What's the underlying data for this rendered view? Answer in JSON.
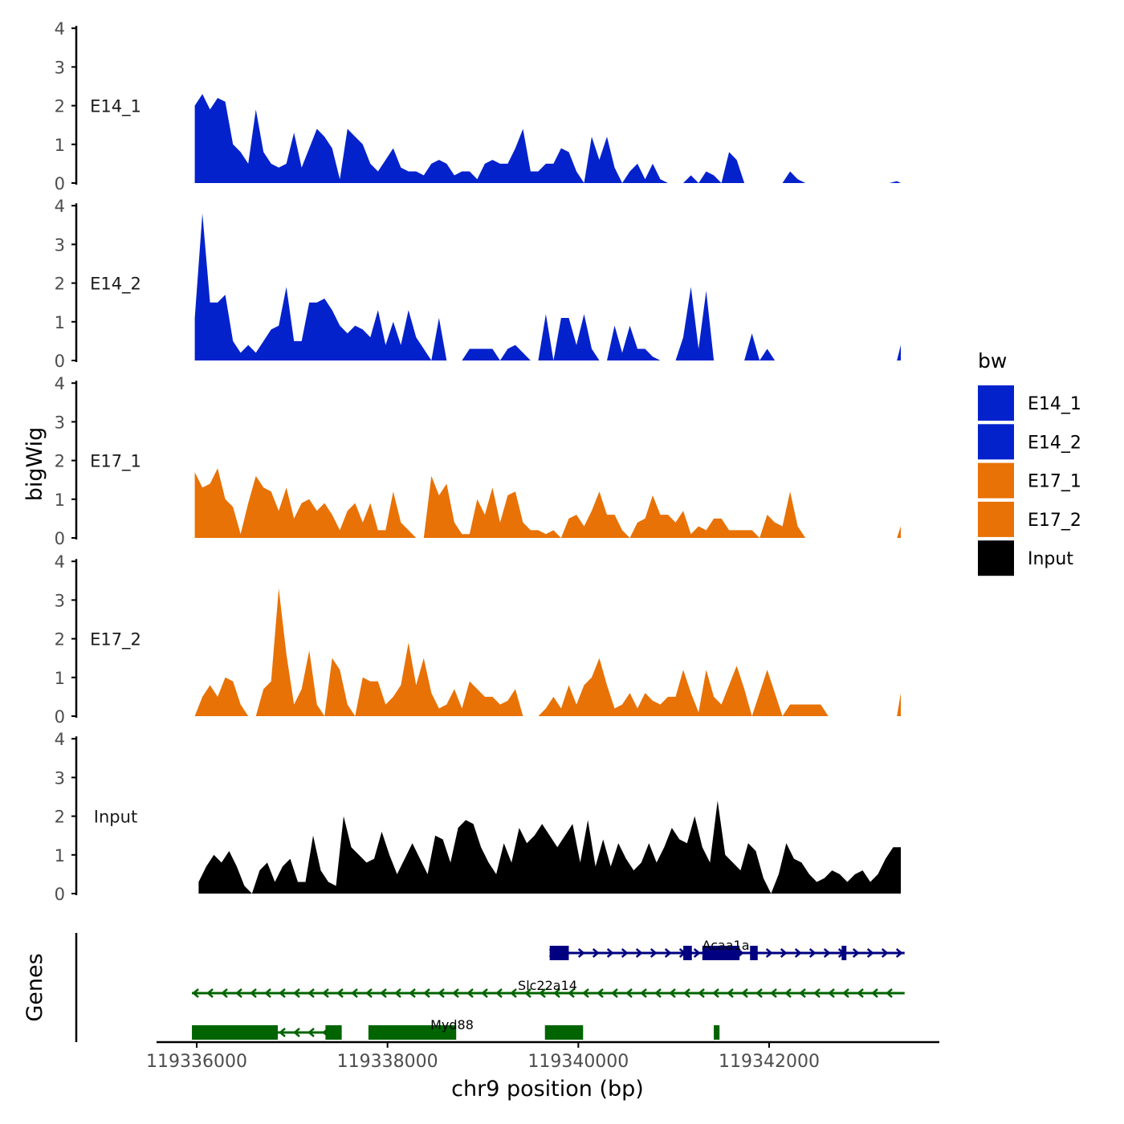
{
  "chart_data": {
    "type": "area",
    "title": "",
    "xlabel": "chr9 position (bp)",
    "ylabel": "bigWig",
    "genes_label": "Genes",
    "xlim": [
      119335700,
      119344050
    ],
    "x_ticks": [
      119336000,
      119338000,
      119340000,
      119342000
    ],
    "x_tick_labels": [
      "119336000",
      "119338000",
      "119340000",
      "119342000"
    ],
    "y_ticks": [
      0,
      1,
      2,
      3,
      4
    ],
    "ylim": [
      0,
      4
    ],
    "legend": {
      "title": "bw",
      "position": "right",
      "items": [
        {
          "label": "E14_1",
          "color": "#0422cc"
        },
        {
          "label": "E14_2",
          "color": "#0422cc"
        },
        {
          "label": "E17_1",
          "color": "#e87206"
        },
        {
          "label": "E17_2",
          "color": "#e87206"
        },
        {
          "label": "Input",
          "color": "#000000"
        }
      ]
    },
    "tracks": [
      {
        "name": "E14_1",
        "color": "#0422cc",
        "x": [
          119335980,
          119336060,
          119336140,
          119336220,
          119336300,
          119336380,
          119336460,
          119336540,
          119336620,
          119336700,
          119336780,
          119336860,
          119336940,
          119337020,
          119337100,
          119337180,
          119337260,
          119337340,
          119337420,
          119337500,
          119337580,
          119337660,
          119337740,
          119337820,
          119337900,
          119337980,
          119338060,
          119338140,
          119338220,
          119338300,
          119338380,
          119338460,
          119338540,
          119338620,
          119338700,
          119338780,
          119338860,
          119338940,
          119339020,
          119339100,
          119339180,
          119339260,
          119339340,
          119339420,
          119339500,
          119339580,
          119339660,
          119339740,
          119339820,
          119339900,
          119339980,
          119340060,
          119340140,
          119340220,
          119340300,
          119340380,
          119340460,
          119340540,
          119340620,
          119340700,
          119340780,
          119340860,
          119340940,
          119341020,
          119341100,
          119341180,
          119341260,
          119341340,
          119341420,
          119341500,
          119341580,
          119341660,
          119341740,
          119341820,
          119341900,
          119341980,
          119342060,
          119342140,
          119342220,
          119342300,
          119342380,
          119342460,
          119342540,
          119342620,
          119342700,
          119342780,
          119342860,
          119342940,
          119343020,
          119343100,
          119343180,
          119343260,
          119343340,
          119343380
        ],
        "y": [
          2.0,
          2.3,
          1.9,
          2.2,
          2.1,
          1.0,
          0.8,
          0.5,
          1.9,
          0.8,
          0.5,
          0.4,
          0.5,
          1.3,
          0.4,
          0.9,
          1.4,
          1.2,
          0.9,
          0.1,
          1.4,
          1.2,
          1.0,
          0.5,
          0.3,
          0.6,
          0.9,
          0.4,
          0.3,
          0.3,
          0.2,
          0.5,
          0.6,
          0.5,
          0.2,
          0.3,
          0.3,
          0.1,
          0.5,
          0.6,
          0.5,
          0.5,
          0.9,
          1.4,
          0.3,
          0.3,
          0.5,
          0.5,
          0.9,
          0.8,
          0.3,
          0.0,
          1.2,
          0.6,
          1.2,
          0.4,
          0.0,
          0.3,
          0.5,
          0.1,
          0.5,
          0.1,
          0.0,
          0.0,
          0.0,
          0.2,
          0.0,
          0.3,
          0.2,
          0.0,
          0.8,
          0.6,
          0.0,
          0.0,
          0.0,
          0.0,
          0.0,
          0.0,
          0.3,
          0.1,
          0.0,
          0.0,
          0.0,
          0.0,
          0.0,
          0.0,
          0.0,
          0.0,
          0.0,
          0.0,
          0.0,
          0.0,
          0.05,
          0.0
        ]
      },
      {
        "name": "E14_2",
        "color": "#0422cc",
        "x": [
          119335980,
          119336060,
          119336140,
          119336220,
          119336300,
          119336380,
          119336460,
          119336540,
          119336620,
          119336700,
          119336780,
          119336860,
          119336940,
          119337020,
          119337100,
          119337180,
          119337260,
          119337340,
          119337420,
          119337500,
          119337580,
          119337660,
          119337740,
          119337820,
          119337900,
          119337980,
          119338060,
          119338140,
          119338220,
          119338300,
          119338380,
          119338460,
          119338540,
          119338620,
          119338700,
          119338780,
          119338860,
          119338940,
          119339020,
          119339100,
          119339180,
          119339260,
          119339340,
          119339420,
          119339500,
          119339580,
          119339660,
          119339740,
          119339820,
          119339900,
          119339980,
          119340060,
          119340140,
          119340220,
          119340300,
          119340380,
          119340460,
          119340540,
          119340620,
          119340700,
          119340780,
          119340860,
          119340940,
          119341020,
          119341100,
          119341180,
          119341260,
          119341340,
          119341420,
          119341500,
          119341580,
          119341660,
          119341740,
          119341820,
          119341900,
          119341980,
          119342060,
          119342140,
          119342220,
          119342300,
          119342380,
          119342460,
          119342540,
          119342620,
          119342700,
          119342780,
          119342860,
          119342940,
          119343020,
          119343100,
          119343180,
          119343260,
          119343340,
          119343380
        ],
        "y": [
          1.1,
          3.8,
          1.5,
          1.5,
          1.7,
          0.5,
          0.2,
          0.4,
          0.2,
          0.5,
          0.8,
          0.9,
          1.9,
          0.5,
          0.5,
          1.5,
          1.5,
          1.6,
          1.3,
          0.9,
          0.7,
          0.9,
          0.8,
          0.6,
          1.3,
          0.4,
          1.0,
          0.4,
          1.3,
          0.6,
          0.3,
          0.0,
          1.1,
          0.0,
          0.0,
          0.0,
          0.3,
          0.3,
          0.3,
          0.3,
          0.0,
          0.3,
          0.4,
          0.2,
          0.0,
          0.0,
          1.2,
          0.0,
          1.1,
          1.1,
          0.4,
          1.2,
          0.3,
          0.0,
          0.0,
          0.9,
          0.2,
          0.9,
          0.3,
          0.3,
          0.1,
          0.0,
          0.0,
          0.0,
          0.6,
          1.9,
          0.3,
          1.8,
          0.0,
          0.0,
          0.0,
          0.0,
          0.0,
          0.7,
          0.0,
          0.3,
          0.0,
          0.0,
          0.0,
          0.0,
          0.0,
          0.0,
          0.0,
          0.0,
          0.0,
          0.0,
          0.0,
          0.0,
          0.0,
          0.0,
          0.0,
          0.0,
          0.0,
          0.4
        ]
      },
      {
        "name": "E17_1",
        "color": "#e87206",
        "x": [
          119335980,
          119336060,
          119336140,
          119336220,
          119336300,
          119336380,
          119336460,
          119336540,
          119336620,
          119336700,
          119336780,
          119336860,
          119336940,
          119337020,
          119337100,
          119337180,
          119337260,
          119337340,
          119337420,
          119337500,
          119337580,
          119337660,
          119337740,
          119337820,
          119337900,
          119337980,
          119338060,
          119338140,
          119338220,
          119338300,
          119338380,
          119338460,
          119338540,
          119338620,
          119338700,
          119338780,
          119338860,
          119338940,
          119339020,
          119339100,
          119339180,
          119339260,
          119339340,
          119339420,
          119339500,
          119339580,
          119339660,
          119339740,
          119339820,
          119339900,
          119339980,
          119340060,
          119340140,
          119340220,
          119340300,
          119340380,
          119340460,
          119340540,
          119340620,
          119340700,
          119340780,
          119340860,
          119340940,
          119341020,
          119341100,
          119341180,
          119341260,
          119341340,
          119341420,
          119341500,
          119341580,
          119341660,
          119341740,
          119341820,
          119341900,
          119341980,
          119342060,
          119342140,
          119342220,
          119342300,
          119342380,
          119342460,
          119342540,
          119342620,
          119342700,
          119342780,
          119342860,
          119342940,
          119343020,
          119343100,
          119343180,
          119343260,
          119343340,
          119343380
        ],
        "y": [
          1.7,
          1.3,
          1.4,
          1.8,
          1.0,
          0.8,
          0.1,
          0.9,
          1.6,
          1.3,
          1.2,
          0.7,
          1.3,
          0.5,
          0.9,
          1.0,
          0.7,
          0.9,
          0.6,
          0.2,
          0.7,
          0.9,
          0.4,
          0.9,
          0.2,
          0.2,
          1.2,
          0.4,
          0.2,
          0.0,
          0.0,
          1.6,
          1.1,
          1.4,
          0.4,
          0.1,
          0.1,
          1.0,
          0.6,
          1.3,
          0.4,
          1.1,
          1.2,
          0.4,
          0.2,
          0.2,
          0.1,
          0.2,
          0.0,
          0.5,
          0.6,
          0.3,
          0.7,
          1.2,
          0.6,
          0.6,
          0.2,
          0.0,
          0.4,
          0.5,
          1.1,
          0.6,
          0.6,
          0.4,
          0.7,
          0.1,
          0.3,
          0.2,
          0.5,
          0.5,
          0.2,
          0.2,
          0.2,
          0.2,
          0.0,
          0.6,
          0.4,
          0.3,
          1.2,
          0.3,
          0.0,
          0.0,
          0.0,
          0.0,
          0.0,
          0.0,
          0.0,
          0.0,
          0.0,
          0.0,
          0.0,
          0.0,
          0.0,
          0.3
        ]
      },
      {
        "name": "E17_2",
        "color": "#e87206",
        "x": [
          119335980,
          119336060,
          119336140,
          119336220,
          119336300,
          119336380,
          119336460,
          119336540,
          119336620,
          119336700,
          119336780,
          119336860,
          119336940,
          119337020,
          119337100,
          119337180,
          119337260,
          119337340,
          119337420,
          119337500,
          119337580,
          119337660,
          119337740,
          119337820,
          119337900,
          119337980,
          119338060,
          119338140,
          119338220,
          119338300,
          119338380,
          119338460,
          119338540,
          119338620,
          119338700,
          119338780,
          119338860,
          119338940,
          119339020,
          119339100,
          119339180,
          119339260,
          119339340,
          119339420,
          119339500,
          119339580,
          119339660,
          119339740,
          119339820,
          119339900,
          119339980,
          119340060,
          119340140,
          119340220,
          119340300,
          119340380,
          119340460,
          119340540,
          119340620,
          119340700,
          119340780,
          119340860,
          119340940,
          119341020,
          119341100,
          119341180,
          119341260,
          119341340,
          119341420,
          119341500,
          119341580,
          119341660,
          119341740,
          119341820,
          119341900,
          119341980,
          119342060,
          119342140,
          119342220,
          119342300,
          119342380,
          119342460,
          119342540,
          119342620,
          119342700,
          119342780,
          119342860,
          119342940,
          119343020,
          119343100,
          119343180,
          119343260,
          119343340,
          119343380
        ],
        "y": [
          0.0,
          0.5,
          0.8,
          0.5,
          1.0,
          0.9,
          0.3,
          0.0,
          0.0,
          0.7,
          0.9,
          3.3,
          1.6,
          0.3,
          0.7,
          1.7,
          0.3,
          0.0,
          1.5,
          1.2,
          0.3,
          0.0,
          1.0,
          0.9,
          0.9,
          0.3,
          0.5,
          0.8,
          1.9,
          0.8,
          1.5,
          0.6,
          0.2,
          0.3,
          0.7,
          0.2,
          0.9,
          0.7,
          0.5,
          0.5,
          0.3,
          0.4,
          0.7,
          0.0,
          0.0,
          0.0,
          0.2,
          0.5,
          0.2,
          0.8,
          0.3,
          0.8,
          1.0,
          1.5,
          0.8,
          0.2,
          0.3,
          0.6,
          0.2,
          0.6,
          0.4,
          0.3,
          0.5,
          0.5,
          1.2,
          0.6,
          0.1,
          1.2,
          0.5,
          0.3,
          0.8,
          1.3,
          0.7,
          0.0,
          0.6,
          1.2,
          0.6,
          0.0,
          0.3,
          0.3,
          0.3,
          0.3,
          0.3,
          0.0,
          0.0,
          0.0,
          0.0,
          0.0,
          0.0,
          0.0,
          0.0,
          0.0,
          0.0,
          0.6
        ]
      },
      {
        "name": "Input",
        "color": "#000000",
        "x": [
          119336020,
          119336100,
          119336180,
          119336260,
          119336340,
          119336420,
          119336500,
          119336580,
          119336660,
          119336740,
          119336820,
          119336900,
          119336980,
          119337060,
          119337140,
          119337220,
          119337300,
          119337380,
          119337460,
          119337540,
          119337620,
          119337700,
          119337780,
          119337860,
          119337940,
          119338020,
          119338100,
          119338180,
          119338260,
          119338340,
          119338420,
          119338500,
          119338580,
          119338660,
          119338740,
          119338820,
          119338900,
          119338980,
          119339060,
          119339140,
          119339220,
          119339300,
          119339380,
          119339460,
          119339540,
          119339620,
          119339700,
          119339780,
          119339860,
          119339940,
          119340020,
          119340100,
          119340180,
          119340260,
          119340340,
          119340420,
          119340500,
          119340580,
          119340660,
          119340740,
          119340820,
          119340900,
          119340980,
          119341060,
          119341140,
          119341220,
          119341300,
          119341380,
          119341460,
          119341540,
          119341620,
          119341700,
          119341780,
          119341860,
          119341940,
          119342020,
          119342100,
          119342180,
          119342260,
          119342340,
          119342420,
          119342500,
          119342580,
          119342660,
          119342740,
          119342820,
          119342900,
          119342980,
          119343060,
          119343140,
          119343220,
          119343300,
          119343380
        ],
        "y": [
          0.3,
          0.7,
          1.0,
          0.8,
          1.1,
          0.7,
          0.2,
          0.0,
          0.6,
          0.8,
          0.3,
          0.7,
          0.9,
          0.3,
          0.3,
          1.5,
          0.6,
          0.3,
          0.2,
          2.0,
          1.2,
          1.0,
          0.8,
          0.9,
          1.6,
          1.0,
          0.5,
          0.9,
          1.3,
          0.9,
          0.5,
          1.5,
          1.4,
          0.8,
          1.7,
          1.9,
          1.8,
          1.2,
          0.8,
          0.5,
          1.3,
          0.8,
          1.7,
          1.3,
          1.5,
          1.8,
          1.5,
          1.2,
          1.5,
          1.8,
          0.8,
          1.9,
          0.7,
          1.4,
          0.7,
          1.3,
          0.9,
          0.6,
          0.8,
          1.3,
          0.8,
          1.2,
          1.7,
          1.4,
          1.3,
          2.0,
          1.2,
          0.8,
          2.4,
          1.0,
          0.8,
          0.6,
          1.3,
          1.1,
          0.4,
          0.0,
          0.5,
          1.3,
          0.9,
          0.8,
          0.5,
          0.3,
          0.4,
          0.6,
          0.5,
          0.3,
          0.5,
          0.6,
          0.3,
          0.5,
          0.9,
          1.2,
          1.2
        ]
      }
    ],
    "genes": [
      {
        "name": "Acaa1a",
        "strand": "+",
        "color": "#000080",
        "row": 1,
        "start": 119339700,
        "end": 119343420,
        "exons": [
          [
            119339700,
            119339900
          ],
          [
            119341100,
            119341190
          ],
          [
            119341300,
            119341690
          ],
          [
            119341800,
            119341880
          ],
          [
            119342760,
            119342810
          ]
        ]
      },
      {
        "name": "Slc22a14",
        "strand": "-",
        "color": "#006400",
        "row": 2,
        "start": 119335950,
        "end": 119343420,
        "exons": []
      },
      {
        "name": "Myd88",
        "strand": "-",
        "color": "#006400",
        "row": 3,
        "start": 119335950,
        "end": 119337380,
        "exons": [
          [
            119335950,
            119336850
          ],
          [
            119337350,
            119337520
          ],
          [
            119337800,
            119338720
          ],
          [
            119339650,
            119340050
          ],
          [
            119341420,
            119341480
          ]
        ]
      }
    ]
  }
}
